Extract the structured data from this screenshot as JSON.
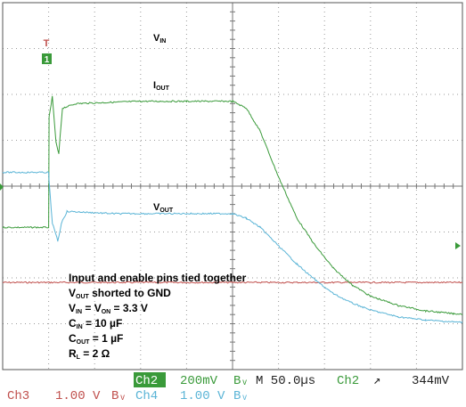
{
  "chart_data": {
    "type": "line",
    "title": "",
    "xlabel": "",
    "ylabel": "",
    "grid": true,
    "x_unit": "µs",
    "x_range": [
      0,
      500
    ],
    "series": [
      {
        "name": "VIN",
        "channel": "Ch3",
        "scale": "1.00 V/div",
        "color": "#c0504d",
        "points": [
          [
            0,
            1.9
          ],
          [
            500,
            1.9
          ]
        ]
      },
      {
        "name": "IOUT",
        "channel": "Ch2",
        "scale": "200mV/div",
        "color": "#3a9a3a",
        "points": [
          [
            0,
            3.1
          ],
          [
            50,
            3.1
          ],
          [
            50.5,
            5.5
          ],
          [
            54,
            5.95
          ],
          [
            58,
            4.95
          ],
          [
            61,
            4.7
          ],
          [
            65,
            5.7
          ],
          [
            80,
            5.8
          ],
          [
            150,
            5.85
          ],
          [
            200,
            5.85
          ],
          [
            250,
            5.85
          ],
          [
            265,
            5.7
          ],
          [
            280,
            5.2
          ],
          [
            300,
            4.2
          ],
          [
            320,
            3.3
          ],
          [
            340,
            2.7
          ],
          [
            360,
            2.2
          ],
          [
            380,
            1.85
          ],
          [
            400,
            1.6
          ],
          [
            430,
            1.4
          ],
          [
            460,
            1.28
          ],
          [
            490,
            1.22
          ],
          [
            500,
            1.21
          ]
        ]
      },
      {
        "name": "VOUT",
        "channel": "Ch4",
        "scale": "1.00 V/div",
        "color": "#5ab4d6",
        "points": [
          [
            0,
            4.3
          ],
          [
            50,
            4.3
          ],
          [
            50.5,
            4.1
          ],
          [
            54,
            3.2
          ],
          [
            60,
            2.8
          ],
          [
            64,
            3.2
          ],
          [
            70,
            3.45
          ],
          [
            120,
            3.4
          ],
          [
            200,
            3.4
          ],
          [
            250,
            3.4
          ],
          [
            265,
            3.3
          ],
          [
            280,
            3.1
          ],
          [
            300,
            2.7
          ],
          [
            320,
            2.3
          ],
          [
            340,
            1.95
          ],
          [
            360,
            1.65
          ],
          [
            380,
            1.45
          ],
          [
            400,
            1.3
          ],
          [
            430,
            1.15
          ],
          [
            460,
            1.08
          ],
          [
            490,
            1.04
          ],
          [
            500,
            1.03
          ]
        ]
      }
    ]
  },
  "labels": {
    "vin": {
      "main": "V",
      "sub": "IN"
    },
    "iout": {
      "main": "I",
      "sub": "OUT"
    },
    "vout": {
      "main": "V",
      "sub": "OUT"
    }
  },
  "annotation": {
    "line1": "Input and enable pins tied together",
    "line2": {
      "main": "V",
      "sub": "OUT",
      "rest": " shorted to GND"
    },
    "line3": {
      "a": "V",
      "a_sub": "IN",
      "mid": " = V",
      "b_sub": "ON",
      "rest": " = 3.3 V"
    },
    "line4": {
      "main": "C",
      "sub": "IN",
      "rest": " = 10 µF"
    },
    "line5": {
      "main": "C",
      "sub": "OUT",
      "rest": " = 1 µF"
    },
    "line6": {
      "main": "R",
      "sub": "L",
      "rest": " = 2 Ω"
    }
  },
  "markers": {
    "trigger_top": "T",
    "channel_marker": "1"
  },
  "status": {
    "ch2_label": "Ch2",
    "ch2_scale": "200mV",
    "bw_symbol": "Bᵥ",
    "timebase": "M 50.0µs",
    "trigger_channel": "Ch2",
    "trigger_slope": "↗",
    "trigger_level": "344mV",
    "ch3_label": "Ch3",
    "ch3_scale": "1.00 V",
    "ch4_label": "Ch4",
    "ch4_scale": "1.00 V"
  },
  "colors": {
    "ch2": "#3a9a3a",
    "ch3": "#c0504d",
    "ch4": "#5ab4d6",
    "ch2_badge_bg": "#3a9a3a"
  }
}
